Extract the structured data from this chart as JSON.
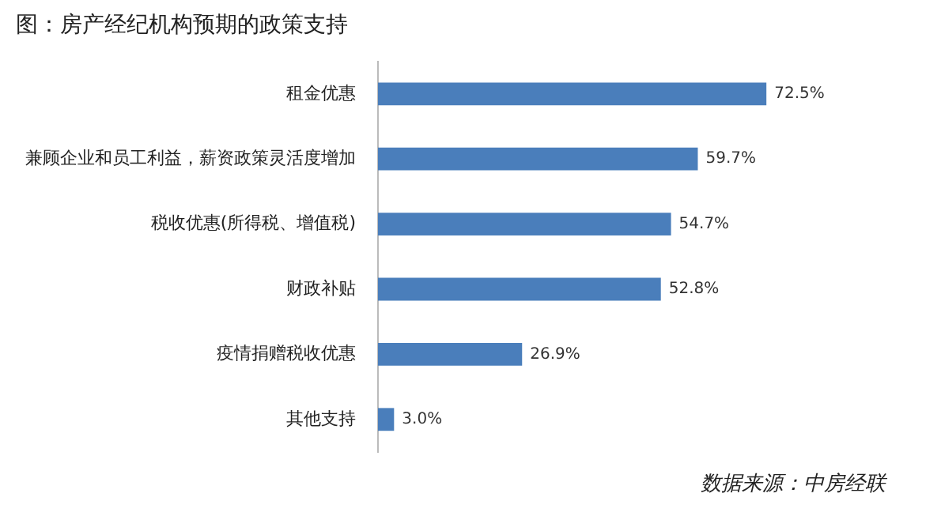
{
  "chart_data": {
    "type": "bar",
    "orientation": "horizontal",
    "title": "图：房产经纪机构预期的政策支持",
    "categories": [
      "租金优惠",
      "兼顾企业和员工利益，薪资政策灵活度增加",
      "税收优惠(所得税、增值税)",
      "财政补贴",
      "疫情捐赠税收优惠",
      "其他支持"
    ],
    "values": [
      72.5,
      59.7,
      54.7,
      52.8,
      26.9,
      3.0
    ],
    "value_labels": [
      "72.5%",
      "59.7%",
      "54.7%",
      "52.8%",
      "26.9%",
      "3.0%"
    ],
    "color": "#4a7ebb",
    "legend": false,
    "annotations": [
      "数据来源：中房经联"
    ]
  }
}
